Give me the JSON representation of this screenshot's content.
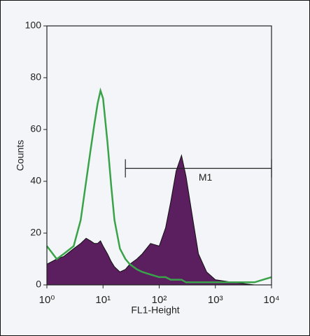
{
  "chart_data": {
    "type": "histogram-overlay",
    "x_label": "FL1-Height",
    "y_label": "Counts",
    "x": [
      1,
      1.5,
      2,
      3,
      4,
      5,
      6,
      7,
      8,
      9,
      10,
      12,
      14,
      16,
      20,
      25,
      30,
      40,
      50,
      70,
      100,
      130,
      160,
      200,
      250,
      300,
      400,
      500,
      700,
      1000,
      2000,
      5000,
      10000
    ],
    "series": [
      {
        "style": "area",
        "color": "#5b1e5f",
        "values": [
          8,
          10,
          11,
          14,
          16,
          18,
          17,
          16,
          16,
          17,
          15,
          12,
          9,
          7,
          5,
          6,
          8,
          10,
          12,
          16,
          15,
          22,
          32,
          44,
          50,
          42,
          25,
          12,
          5,
          2,
          1,
          0,
          0
        ]
      },
      {
        "style": "line",
        "color": "#3aa34a",
        "values": [
          15,
          10,
          12,
          15,
          25,
          40,
          52,
          62,
          70,
          75,
          72,
          55,
          38,
          25,
          14,
          10,
          8,
          6,
          5,
          4,
          3,
          3,
          2,
          2,
          2,
          1,
          1,
          1,
          1,
          1,
          1,
          1,
          3
        ]
      }
    ],
    "xlim": [
      1,
      10000
    ],
    "log_x": true,
    "xticks": [
      {
        "value": 1,
        "label": "10⁰"
      },
      {
        "value": 10,
        "label": "10¹"
      },
      {
        "value": 100,
        "label": "10²"
      },
      {
        "value": 1000,
        "label": "10³"
      },
      {
        "value": 10000,
        "label": "10⁴"
      }
    ],
    "ylim": [
      0,
      100
    ],
    "yticks": [
      0,
      20,
      40,
      60,
      80,
      100
    ],
    "markers": [
      {
        "label": "M1",
        "range": [
          25,
          10000
        ],
        "y": 45
      }
    ]
  }
}
